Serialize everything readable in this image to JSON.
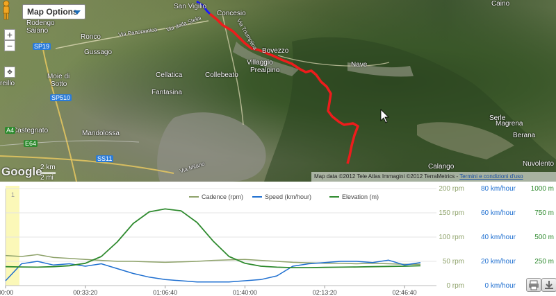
{
  "map": {
    "options_label": "Map Options",
    "zoom_in": "+",
    "zoom_out": "−",
    "google_logo": "Google",
    "scale": [
      "2 km",
      "2 mi"
    ],
    "attribution": "Map data ©2012 Tele Atlas Immagini ©2012 TerraMetrics - ",
    "attribution_link": "Termini e condizioni d'uso",
    "places": [
      "San Vigilio",
      "Concesio",
      "Caino",
      "Rodengo",
      "Saiano",
      "Ronco",
      "Gussago",
      "Bovezzo",
      "Nave",
      "Villaggio",
      "Prealpino",
      "Cellatica",
      "Collebeato",
      "Fantasina",
      "Moie di",
      "Sotto",
      "Castegnato",
      "Mandolossa",
      "Serle",
      "Magrena",
      "Berana",
      "Calango",
      "Nuvolento",
      "reillo"
    ],
    "roads": [
      "SP19",
      "SP510",
      "SS11",
      "A4",
      "E64"
    ],
    "streets": [
      "Via Panoramica",
      "Via della Stella",
      "Via Milano",
      "Via Triumplina"
    ]
  },
  "chart": {
    "colors": {
      "cadence": "#8ea26a",
      "speed": "#1e6fd0",
      "elevation": "#2e8a2e",
      "highlight": "#fbf8b8"
    },
    "x_ticks": [
      "00:00",
      "00:33:20",
      "01:06:40",
      "01:40:00",
      "02:13:20",
      "02:46:40"
    ],
    "axes": {
      "cadence": [
        "0 rpm",
        "50 rpm",
        "100 rpm",
        "150 rpm",
        "200 rpm"
      ],
      "speed": [
        "0 km/hour",
        "20 km/hour",
        "40 km/hour",
        "60 km/hour",
        "80 km/hour"
      ],
      "elevation": [
        "0 m",
        "250 m",
        "500 m",
        "750 m",
        "1000 m"
      ]
    },
    "legend": [
      "Cadence (rpm)",
      "Speed (km/hour)",
      "Elevation (m)"
    ],
    "marker": "1"
  },
  "chart_data": {
    "type": "line",
    "xlim_seconds": [
      0,
      10800
    ],
    "x_seconds": [
      0,
      400,
      800,
      1200,
      1600,
      2000,
      2400,
      2800,
      3200,
      3600,
      4000,
      4400,
      4800,
      5200,
      5600,
      6000,
      6400,
      6800,
      7200,
      7600,
      8000,
      8400,
      8800,
      9200,
      9600,
      10000,
      10400
    ],
    "series": [
      {
        "name": "Cadence (rpm)",
        "axis": "rpm",
        "ylim": [
          0,
          200
        ],
        "values": [
          62,
          60,
          64,
          58,
          56,
          54,
          52,
          50,
          50,
          49,
          48,
          49,
          50,
          52,
          53,
          54,
          52,
          50,
          48,
          47,
          46,
          46,
          45,
          46,
          45,
          44,
          44
        ]
      },
      {
        "name": "Speed (km/hour)",
        "axis": "km/hour",
        "ylim": [
          0,
          80
        ],
        "values": [
          4,
          18,
          20,
          17,
          18,
          16,
          18,
          14,
          10,
          7,
          5,
          4,
          3,
          3,
          3,
          4,
          5,
          8,
          16,
          18,
          19,
          20,
          20,
          19,
          21,
          17,
          19
        ]
      },
      {
        "name": "Elevation (m)",
        "axis": "m",
        "ylim": [
          0,
          1000
        ],
        "values": [
          195,
          192,
          190,
          195,
          205,
          230,
          300,
          450,
          640,
          760,
          790,
          770,
          650,
          460,
          300,
          230,
          200,
          190,
          185,
          185,
          188,
          190,
          192,
          195,
          198,
          200,
          205
        ]
      }
    ]
  }
}
